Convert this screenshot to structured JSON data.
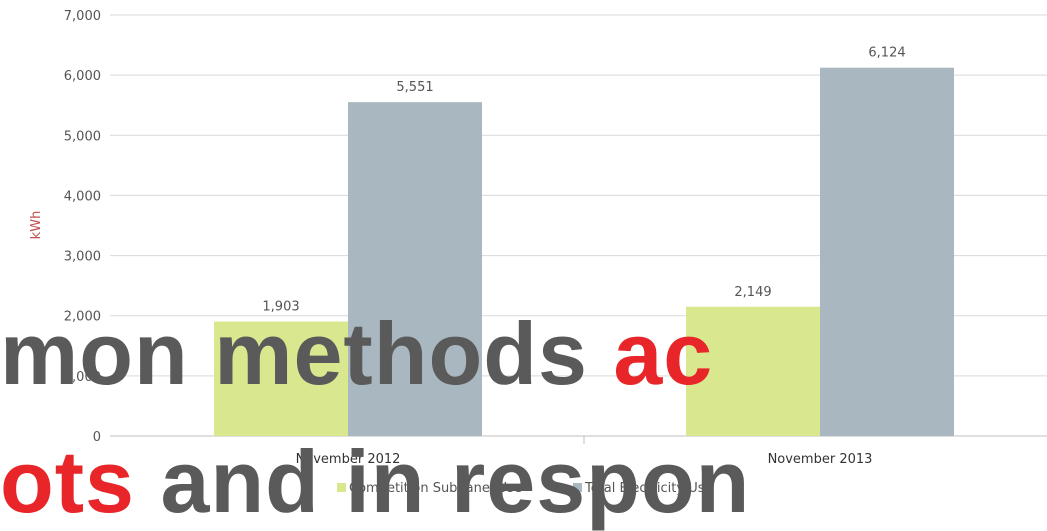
{
  "chart_data": {
    "type": "bar",
    "categories": [
      "November 2012",
      "November 2013"
    ],
    "series": [
      {
        "name": "Competition Subpanel Use",
        "values": [
          1903,
          2149
        ],
        "color": "#d9e88f"
      },
      {
        "name": "Total Electricity Use",
        "values": [
          5551,
          6124
        ],
        "color": "#a9b8c0"
      }
    ],
    "data_labels": [
      [
        "1,903",
        "2,149"
      ],
      [
        "5,551",
        "6,124"
      ]
    ],
    "ylabel": "kWh",
    "ylim": [
      0,
      7000
    ],
    "yticks": [
      0,
      1000,
      2000,
      3000,
      4000,
      5000,
      6000,
      7000
    ],
    "ytick_labels": [
      "0",
      "1,000",
      "2,000",
      "3,000",
      "4,000",
      "5,000",
      "6,000",
      "7,000"
    ],
    "grid": true,
    "legend": "bottom"
  },
  "overlay": {
    "line1_part1": "mon methods ",
    "line1_part2": "ac",
    "line2_part1": "ots",
    "line2_part2": " and in respon"
  }
}
